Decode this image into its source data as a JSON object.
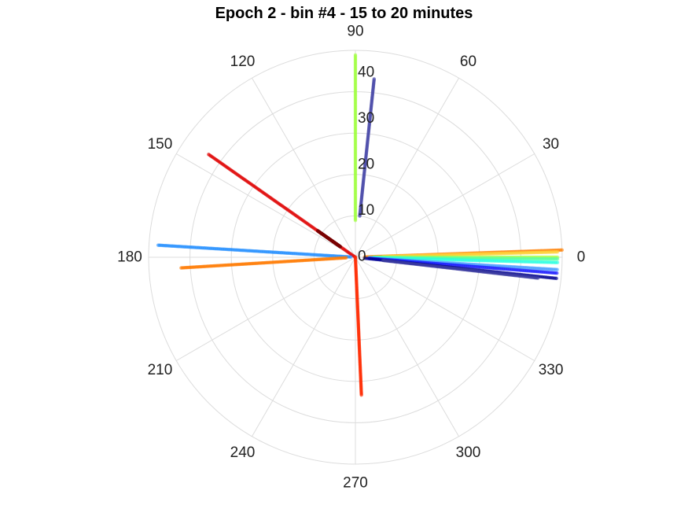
{
  "chart_data": {
    "type": "scatter",
    "coordinate_system": "polar",
    "title": "Epoch 2 - bin #4 - 15 to 20 minutes",
    "angle_unit": "degrees",
    "angle_ticks": [
      0,
      30,
      60,
      90,
      120,
      150,
      180,
      210,
      240,
      270,
      300,
      330
    ],
    "radial_ticks": [
      0,
      10,
      20,
      30,
      40
    ],
    "rlim": [
      0,
      45
    ],
    "grid": true,
    "series": [
      {
        "color": "#ff7f00",
        "theta": [
          2.0,
          2.0
        ],
        "r": [
          2,
          45
        ]
      },
      {
        "color": "#ffd23a",
        "theta": [
          1.5,
          1.5
        ],
        "r": [
          6,
          44
        ]
      },
      {
        "color": "#a8ff4a",
        "theta": [
          0.0,
          0.0
        ],
        "r": [
          4,
          44
        ]
      },
      {
        "color": "#5affa0",
        "theta": [
          -0.5,
          -0.5
        ],
        "r": [
          4,
          44
        ]
      },
      {
        "color": "#2affe0",
        "theta": [
          -1.5,
          -1.5
        ],
        "r": [
          3,
          44
        ]
      },
      {
        "color": "#4a9cff",
        "theta": [
          -3.5,
          -3.5
        ],
        "r": [
          3,
          44
        ]
      },
      {
        "color": "#1a1aff",
        "theta": [
          -4.5,
          -4.5
        ],
        "r": [
          3,
          44
        ]
      },
      {
        "color": "#00008f",
        "theta": [
          -6.0,
          -6.0
        ],
        "r": [
          2,
          44
        ]
      },
      {
        "color": "#3a3aa0",
        "theta": [
          -6.5,
          -6.5
        ],
        "r": [
          6,
          40
        ]
      },
      {
        "color": "#a0ff40",
        "theta": [
          90.0,
          90.0
        ],
        "r": [
          8,
          44
        ]
      },
      {
        "color": "#4a4aa8",
        "theta": [
          84.0,
          84.0
        ],
        "r": [
          9,
          39
        ]
      },
      {
        "color": "#e00000",
        "theta": [
          145.0,
          145.0
        ],
        "r": [
          0,
          39
        ]
      },
      {
        "color": "#7a0000",
        "theta": [
          145.0,
          145.0
        ],
        "r": [
          4,
          10
        ]
      },
      {
        "color": "#1e8cff",
        "theta": [
          176.5,
          176.5
        ],
        "r": [
          1,
          43
        ]
      },
      {
        "color": "#ff7a00",
        "theta": [
          183.5,
          183.5
        ],
        "r": [
          2,
          38
        ]
      },
      {
        "color": "#ff2a00",
        "theta": [
          272.5,
          272.5
        ],
        "r": [
          0,
          30
        ]
      }
    ]
  }
}
